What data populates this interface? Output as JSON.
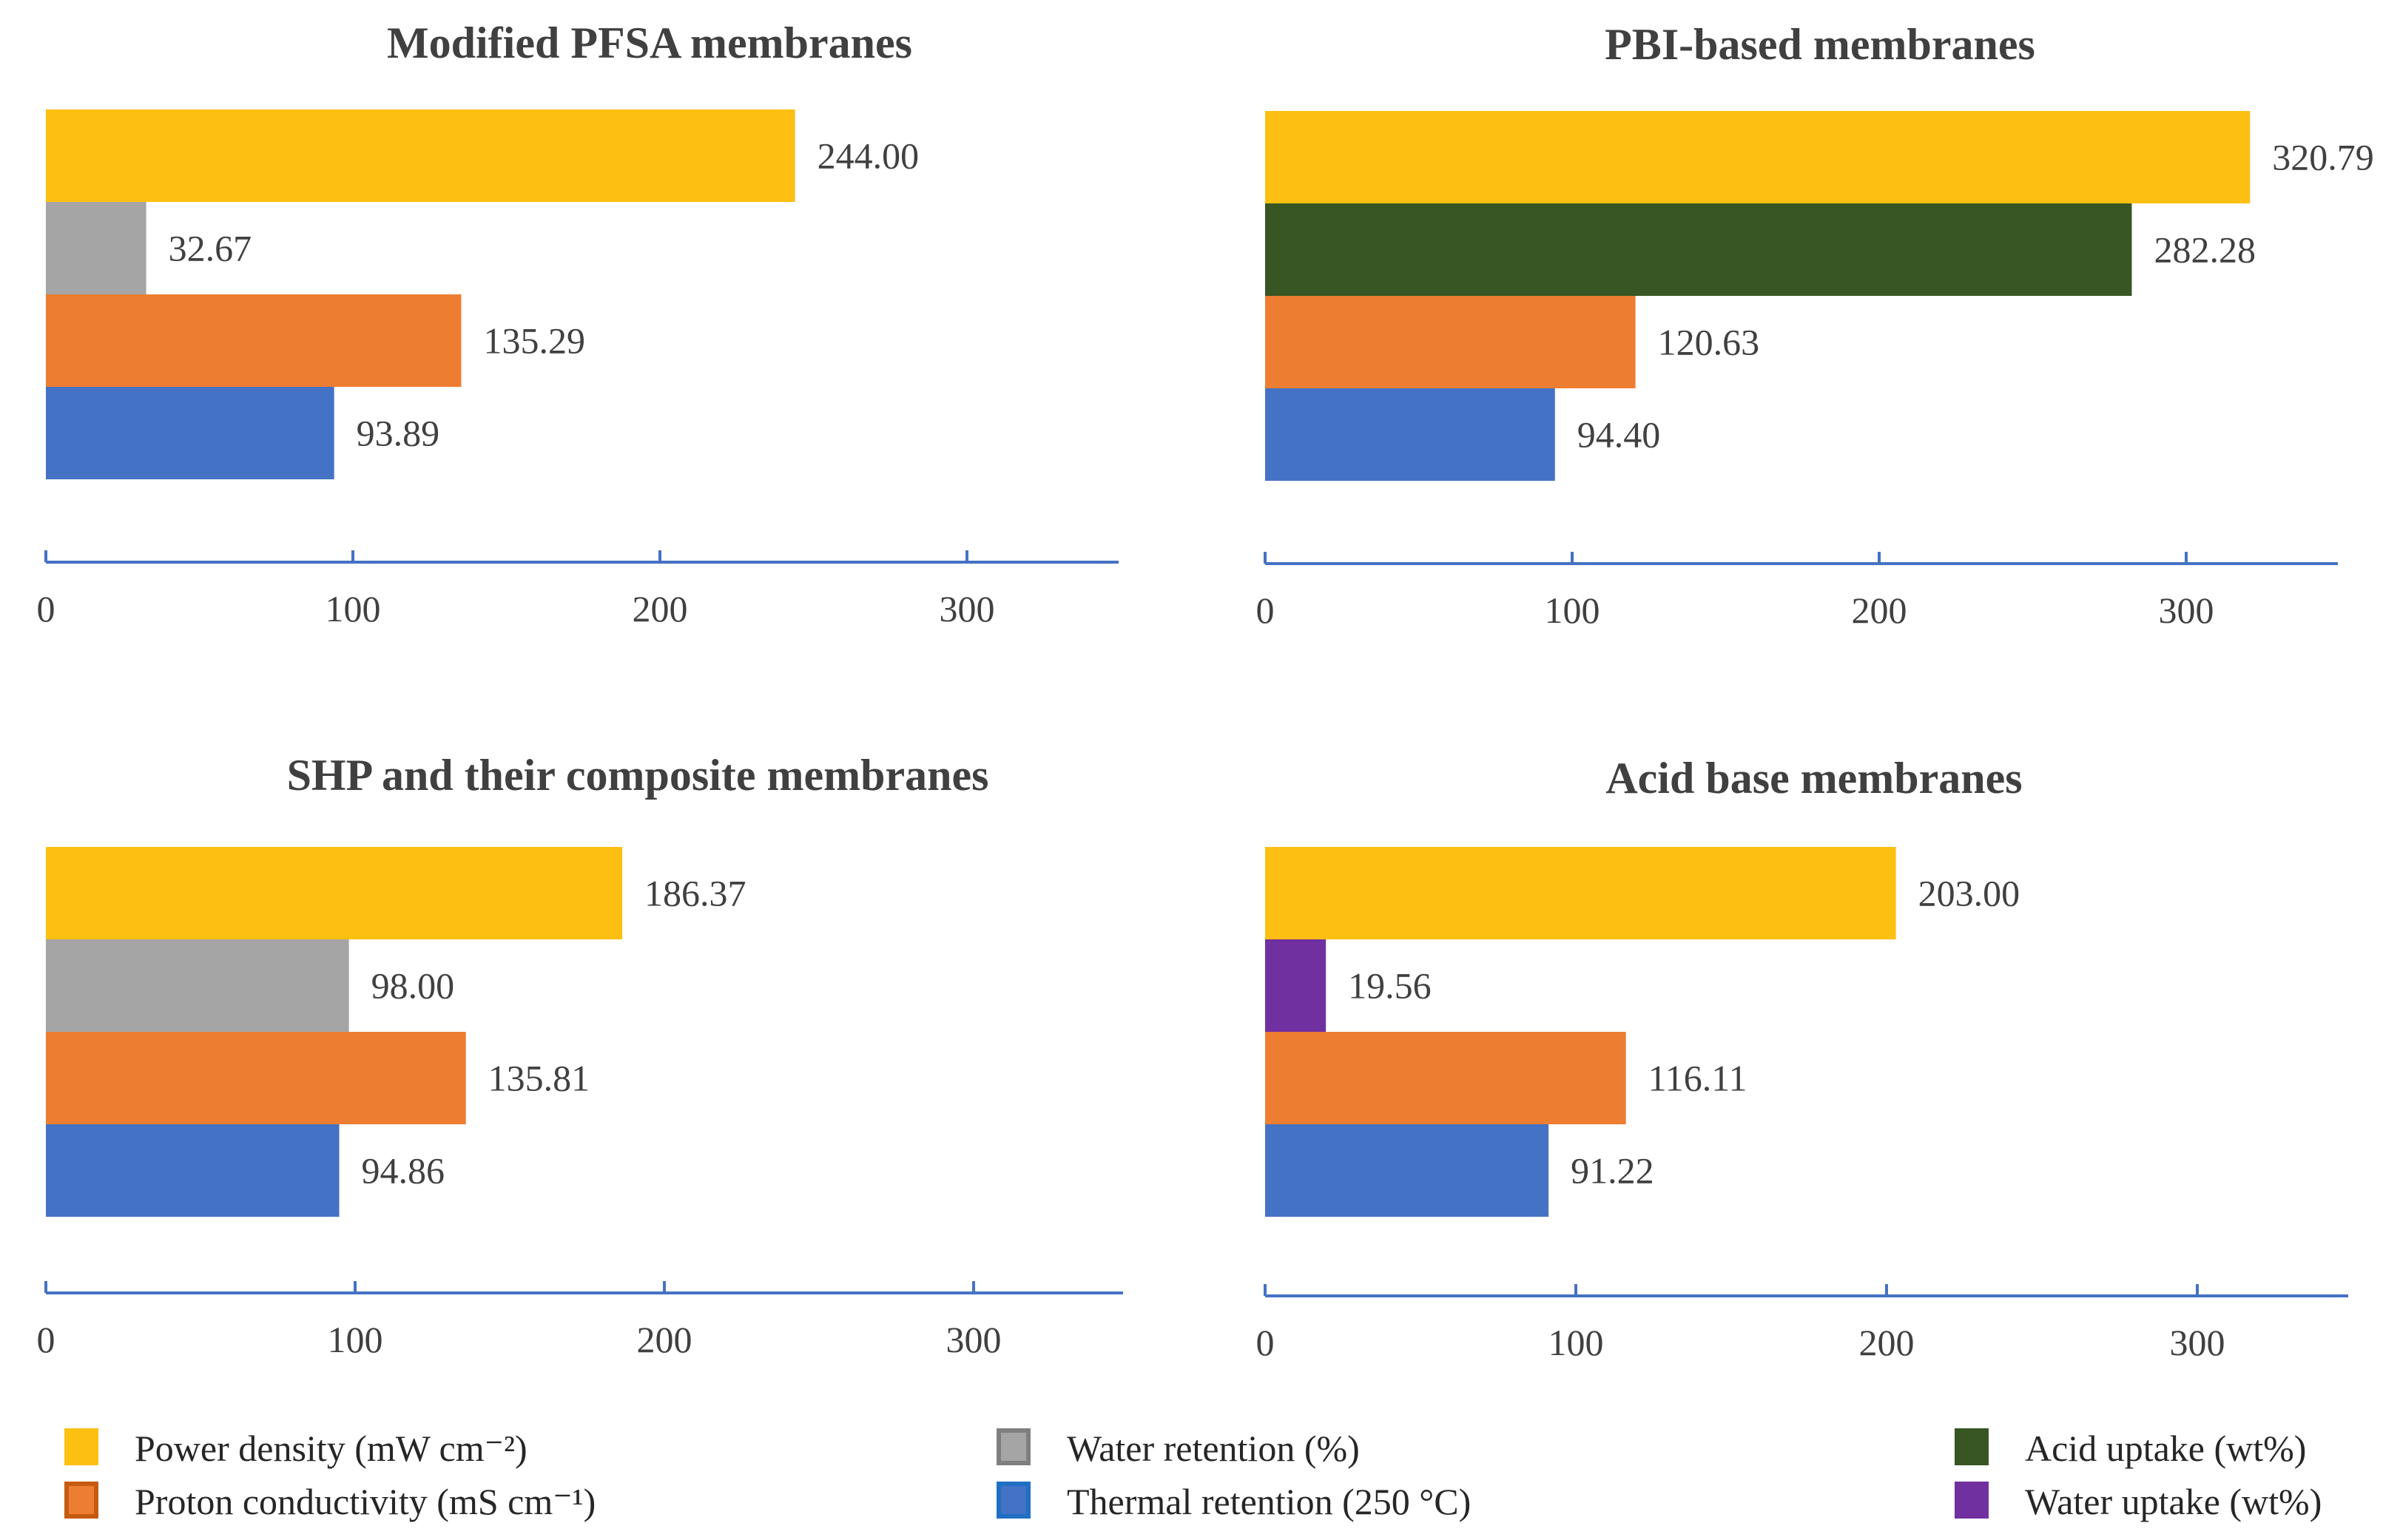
{
  "colors": {
    "power": "#FDBF12",
    "water_retention": "#A5A5A5",
    "acid_uptake": "#375623",
    "water_uptake": "#7030A0",
    "proton": "#ED7D31",
    "thermal": "#4472C4",
    "axis": "#4472C4"
  },
  "legend": [
    {
      "label": "Power density (mW cm⁻²)",
      "color": "#FDBF12",
      "swatch": "#FDBF12"
    },
    {
      "label": "Proton conductivity (mS cm⁻¹)",
      "color": "#ED7D31",
      "swatch": "#C55A11"
    },
    {
      "label": "Water retention (%)",
      "color": "#A5A5A5",
      "swatch": "#7F7F7F"
    },
    {
      "label": "Thermal retention (250 °C)",
      "color": "#4472C4",
      "swatch": "#1F6FC4"
    },
    {
      "label": "Acid uptake (wt%)",
      "color": "#375623",
      "swatch": "#375623"
    },
    {
      "label": "Water uptake (wt%)",
      "color": "#7030A0",
      "swatch": "#7030A0"
    }
  ],
  "chart_data": [
    {
      "type": "bar",
      "orientation": "horizontal",
      "title": "Modified PFSA membranes",
      "xlim": [
        0,
        350
      ],
      "ticks": [
        0,
        100,
        200,
        300
      ],
      "bars": [
        {
          "series": "Power density (mW cm⁻²)",
          "value": 244.0,
          "label": "244.00",
          "color": "#FDBF12"
        },
        {
          "series": "Water retention (%)",
          "value": 32.67,
          "label": "32.67",
          "color": "#A5A5A5"
        },
        {
          "series": "Proton conductivity (mS cm⁻¹)",
          "value": 135.29,
          "label": "135.29",
          "color": "#ED7D31"
        },
        {
          "series": "Thermal retention (250 °C)",
          "value": 93.89,
          "label": "93.89",
          "color": "#4472C4"
        }
      ]
    },
    {
      "type": "bar",
      "orientation": "horizontal",
      "title": "PBI-based membranes",
      "xlim": [
        0,
        350
      ],
      "ticks": [
        0,
        100,
        200,
        300
      ],
      "bars": [
        {
          "series": "Power density (mW cm⁻²)",
          "value": 320.79,
          "label": "320.79",
          "color": "#FDBF12"
        },
        {
          "series": "Acid uptake (wt%)",
          "value": 282.28,
          "label": "282.28",
          "color": "#375623"
        },
        {
          "series": "Proton conductivity (mS cm⁻¹)",
          "value": 120.63,
          "label": "120.63",
          "color": "#ED7D31"
        },
        {
          "series": "Thermal retention (250 °C)",
          "value": 94.4,
          "label": "94.40",
          "color": "#4472C4"
        }
      ]
    },
    {
      "type": "bar",
      "orientation": "horizontal",
      "title": "SHP and their composite membranes",
      "xlim": [
        0,
        350
      ],
      "ticks": [
        0,
        100,
        200,
        300
      ],
      "bars": [
        {
          "series": "Power density (mW cm⁻²)",
          "value": 186.37,
          "label": "186.37",
          "color": "#FDBF12"
        },
        {
          "series": "Water retention (%)",
          "value": 98.0,
          "label": "98.00",
          "color": "#A5A5A5"
        },
        {
          "series": "Proton conductivity (mS cm⁻¹)",
          "value": 135.81,
          "label": "135.81",
          "color": "#ED7D31"
        },
        {
          "series": "Thermal retention (250 °C)",
          "value": 94.86,
          "label": "94.86",
          "color": "#4472C4"
        }
      ]
    },
    {
      "type": "bar",
      "orientation": "horizontal",
      "title": "Acid base membranes",
      "xlim": [
        0,
        350
      ],
      "ticks": [
        0,
        100,
        200,
        300
      ],
      "bars": [
        {
          "series": "Power density (mW cm⁻²)",
          "value": 203.0,
          "label": "203.00",
          "color": "#FDBF12"
        },
        {
          "series": "Water uptake (wt%)",
          "value": 19.56,
          "label": "19.56",
          "color": "#7030A0"
        },
        {
          "series": "Proton conductivity (mS cm⁻¹)",
          "value": 116.11,
          "label": "116.11",
          "color": "#ED7D31"
        },
        {
          "series": "Thermal retention (250 °C)",
          "value": 91.22,
          "label": "91.22",
          "color": "#4472C4"
        }
      ]
    }
  ]
}
